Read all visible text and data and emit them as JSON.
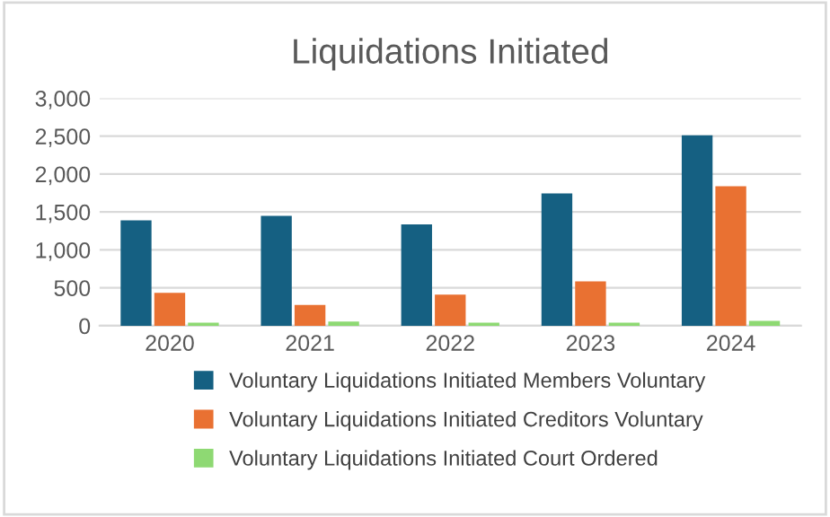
{
  "chart_data": {
    "type": "bar",
    "title": "Liquidations Initiated",
    "categories": [
      "2020",
      "2021",
      "2022",
      "2023",
      "2024"
    ],
    "series": [
      {
        "name": "Voluntary Liquidations Initiated Members Voluntary",
        "color": "#156082",
        "values": [
          1390,
          1450,
          1335,
          1745,
          2510
        ]
      },
      {
        "name": "Voluntary Liquidations Initiated Creditors Voluntary",
        "color": "#e97132",
        "values": [
          435,
          275,
          410,
          585,
          1840
        ]
      },
      {
        "name": "Voluntary Liquidations Initiated Court Ordered",
        "color": "#8ed973",
        "values": [
          40,
          55,
          40,
          40,
          65
        ]
      }
    ],
    "ylim": [
      0,
      3000
    ],
    "yticks": [
      {
        "value": 0,
        "label": "0"
      },
      {
        "value": 500,
        "label": "500"
      },
      {
        "value": 1000,
        "label": "1,000"
      },
      {
        "value": 1500,
        "label": "1,500"
      },
      {
        "value": 2000,
        "label": "2,000"
      },
      {
        "value": 2500,
        "label": "2,500"
      },
      {
        "value": 3000,
        "label": "3,000"
      }
    ],
    "grid": "y",
    "legend": "bottom"
  }
}
